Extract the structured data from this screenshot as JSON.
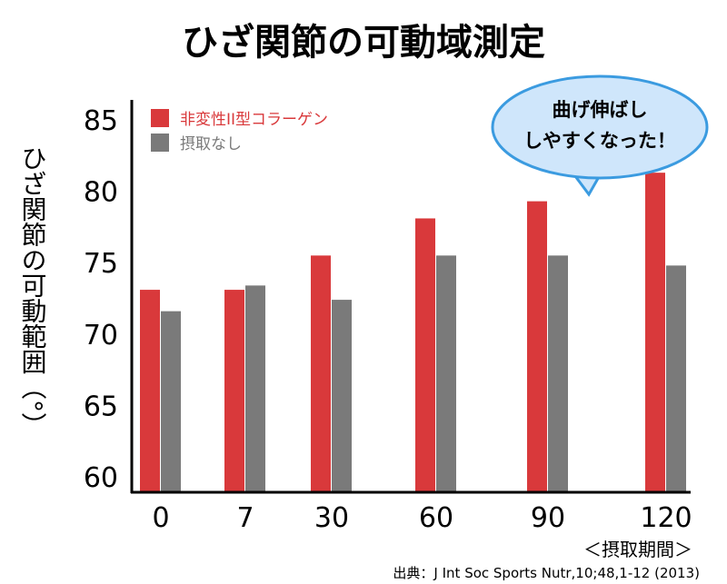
{
  "chart_data": {
    "type": "bar",
    "title": "ひざ関節の可動域測定",
    "ylabel": "ひざ関節の可動範囲（°）",
    "xlabel": "＜摂取期間＞",
    "categories": [
      "0",
      "7",
      "30",
      "60",
      "90",
      "120"
    ],
    "yticks": [
      "60",
      "65",
      "70",
      "75",
      "80",
      "85"
    ],
    "ylim": [
      60,
      85
    ],
    "series": [
      {
        "name": "非変性II型コラーゲン",
        "color": "#d9393b",
        "values": [
          73.1,
          73.1,
          75.5,
          78.1,
          79.3,
          81.3
        ]
      },
      {
        "name": "摂取なし",
        "color": "#7a7a7a",
        "values": [
          71.6,
          73.4,
          72.4,
          75.5,
          75.5,
          74.8
        ]
      }
    ],
    "legend_position": "top-left",
    "annotation": [
      "曲げ伸ばし",
      "しやすくなった！"
    ],
    "source": "出典：J Int Soc Sports Nutr,10;48,1-12 (2013)"
  }
}
